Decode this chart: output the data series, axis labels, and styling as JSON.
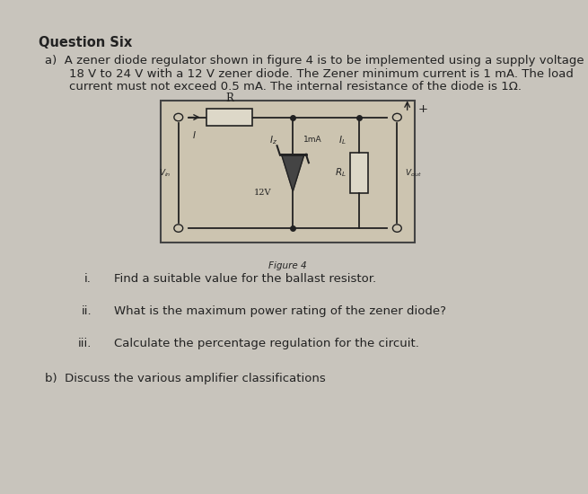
{
  "title": "Question Six",
  "bg_color": "#c8c4bc",
  "paper_color": "#f2f0ec",
  "circuit_bg": "#ccc4b0",
  "para_a_line1": "a)  A zener diode regulator shown in figure 4 is to be implemented using a supply voltage of",
  "para_a_line2": "18 V to 24 V with a 12 V zener diode. The Zener minimum current is 1 mA. The load",
  "para_a_line3": "current must not exceed 0.5 mA. The internal resistance of the diode is 1Ω.",
  "figure_caption": "Figure 4",
  "items": [
    {
      "label": "i.",
      "text": "Find a suitable value for the ballast resistor."
    },
    {
      "label": "ii.",
      "text": "What is the maximum power rating of the zener diode?"
    },
    {
      "label": "iii.",
      "text": "Calculate the percentage regulation for the circuit."
    }
  ],
  "para_b": "b)  Discuss the various amplifier classifications",
  "tc": "#222222",
  "fs_title": 10.5,
  "fs_body": 9.5,
  "fs_small": 7.5,
  "fig_width": 6.55,
  "fig_height": 5.5
}
